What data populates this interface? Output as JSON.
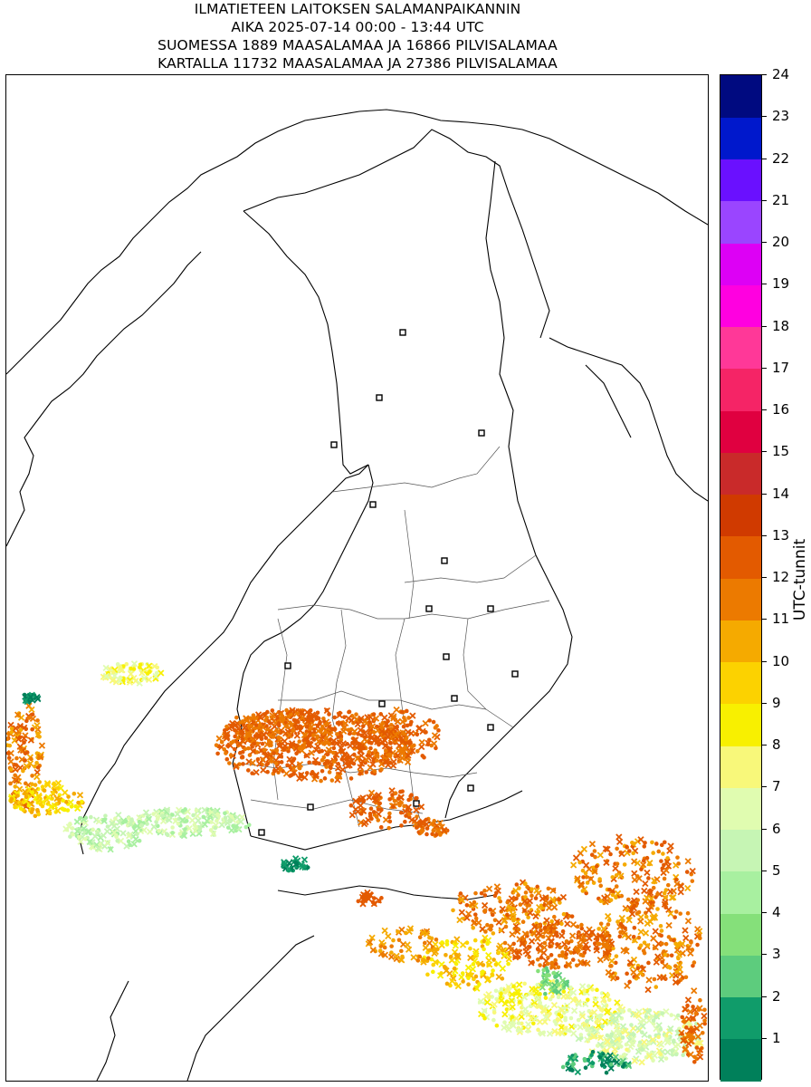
{
  "title": {
    "line1": "ILMATIETEEN LAITOKSEN SALAMANPAIKANNIN",
    "line2": "AIKA 2025-07-14 00:00 - 13:44 UTC",
    "line3": "SUOMESSA 1889 MAASALAMAA JA 16866 PILVISALAMAA",
    "line4": "KARTALLA 11732 MAASALAMAA JA 27386 PILVISALAMAA"
  },
  "colorbar": {
    "label": "UTC-tunnit",
    "ticks": [
      "1",
      "2",
      "3",
      "4",
      "5",
      "6",
      "7",
      "8",
      "9",
      "10",
      "11",
      "12",
      "13",
      "14",
      "15",
      "16",
      "17",
      "18",
      "19",
      "20",
      "21",
      "22",
      "23",
      "24"
    ],
    "colors": [
      "#00805a",
      "#109c6a",
      "#5dcc7d",
      "#85e07a",
      "#a8f0a0",
      "#c6f5b4",
      "#e0fcb0",
      "#f8f87a",
      "#f8f000",
      "#fcd200",
      "#f5aa00",
      "#ec7a00",
      "#e35a00",
      "#d03a00",
      "#c92a2a",
      "#e00040",
      "#f52466",
      "#ff3898",
      "#ff00e0",
      "#dd00f5",
      "#9a45ff",
      "#6a10ff",
      "#0018cc",
      "#000a80"
    ]
  },
  "legend": {
    "ground_strike_marker": "×",
    "cloud_strike_marker": "•"
  }
}
